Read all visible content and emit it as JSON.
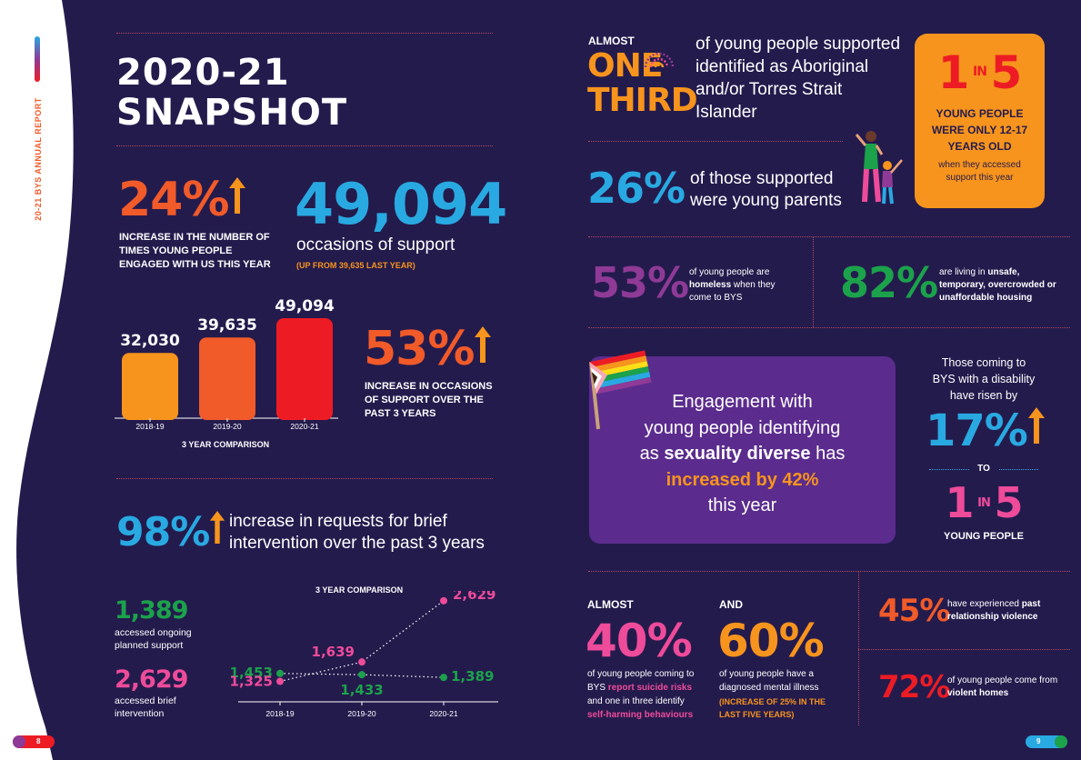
{
  "sidebar": {
    "vertical_text": "20-21 BYS ANNUAL REPORT"
  },
  "left": {
    "title_line1": "2020-21",
    "title_line2": "SNAPSHOT",
    "stat_24": {
      "value": "24%",
      "desc": "INCREASE IN THE NUMBER OF TIMES YOUNG PEOPLE ENGAGED WITH US THIS YEAR"
    },
    "stat_49094": {
      "value": "49,094",
      "desc": "occasions of support",
      "sub": "(UP FROM 39,635 LAST YEAR)"
    },
    "stat_53": {
      "value": "53%",
      "desc": "INCREASE IN OCCASIONS OF SUPPORT OVER THE PAST 3 YEARS"
    },
    "bar_caption": "3 YEAR COMPARISON",
    "stat_98": {
      "value": "98%",
      "desc": "increase in requests for brief intervention over the past 3 years"
    },
    "stat_1389": {
      "value": "1,389",
      "desc": "accessed ongoing planned support"
    },
    "stat_2629": {
      "value": "2,629",
      "desc": "accessed brief intervention"
    },
    "line_caption": "3 YEAR COMPARISON",
    "page_number": "8"
  },
  "chart_data": [
    {
      "type": "bar",
      "categories": [
        "2018-19",
        "2019-20",
        "2020-21"
      ],
      "values": [
        32030,
        39635,
        49094
      ],
      "value_labels": [
        "32,030",
        "39,635",
        "49,094"
      ],
      "colors": [
        "#f7941d",
        "#f15a29",
        "#ed1c24"
      ],
      "title": "3 YEAR COMPARISON"
    },
    {
      "type": "line",
      "x": [
        "2018-19",
        "2019-20",
        "2020-21"
      ],
      "series": [
        {
          "values": [
            1453,
            1433,
            1389
          ],
          "labels": [
            "1,453",
            "1,433",
            "1,389"
          ],
          "color": "#1ba24b"
        },
        {
          "values": [
            1325,
            1639,
            2629
          ],
          "labels": [
            "1,325",
            "1,639",
            "2,629"
          ],
          "color": "#ee4b9a"
        }
      ],
      "title": "3 YEAR COMPARISON"
    }
  ],
  "right": {
    "third": {
      "almost": "ALMOST",
      "one": "ONE",
      "third": "THIRD",
      "desc": "of young people supported identified as Aboriginal and/or Torres Strait Islander"
    },
    "one_in_five": {
      "one": "1",
      "in": "IN",
      "five": "5",
      "caps": "YOUNG PEOPLE WERE ONLY 12-17 YEARS OLD",
      "desc": "when they accessed support this year"
    },
    "stat_26": {
      "value": "26%",
      "desc": "of those supported were young parents"
    },
    "stat_53": {
      "value": "53%",
      "desc_a": "of young people are ",
      "desc_b": "homeless",
      "desc_c": " when they come to BYS"
    },
    "stat_82": {
      "value": "82%",
      "desc_a": "are living in ",
      "desc_b": "unsafe, temporary, overcrowded or unaffordable housing"
    },
    "engagement": {
      "line1": "Engagement with",
      "line2": "young people identifying",
      "line3a": "as ",
      "line3b": "sexuality diverse",
      "line3c": " has",
      "line4": "increased by 42%",
      "line5": "this year"
    },
    "disability": {
      "desc": "Those coming to BYS with a disability have risen by",
      "value": "17%",
      "to": "TO",
      "one": "1",
      "in": "IN",
      "five": "5",
      "young": "YOUNG PEOPLE"
    },
    "stat_40": {
      "almost": "ALMOST",
      "value": "40%",
      "desc_a": "of young people coming to BYS ",
      "desc_b": "report suicide risks",
      "desc_c": " and one in three identify ",
      "desc_d": "self-harming behaviours"
    },
    "stat_60": {
      "and": "AND",
      "value": "60%",
      "desc": "of young people have a diagnosed mental illness",
      "sub": "(INCREASE OF 25% IN THE LAST FIVE YEARS)"
    },
    "stat_45": {
      "value": "45%",
      "desc_a": "have experienced ",
      "desc_b": "past relationship violence"
    },
    "stat_72": {
      "value": "72%",
      "desc_a": "of young people come from ",
      "desc_b": "violent homes"
    },
    "page_number": "9"
  },
  "colors": {
    "background": "#241b4d",
    "orange": "#f7941d",
    "red_orange": "#f15a29",
    "blue": "#29a9e1",
    "pink": "#ee4b9a",
    "purple": "#8e3a96",
    "green": "#1ba24b",
    "red": "#ed1c24",
    "panel_purple": "#5b2c8e"
  }
}
